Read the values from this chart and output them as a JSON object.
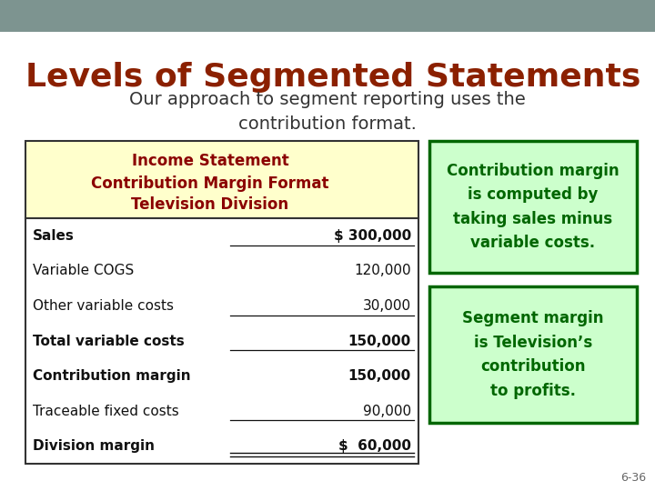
{
  "title": "Levels of Segmented Statements",
  "subtitle": "Our approach to segment reporting uses the\ncontribution format.",
  "title_color": "#8B2000",
  "subtitle_color": "#333333",
  "background_color": "#ffffff",
  "header_bar_color": "#7d9490",
  "slide_number": "6-36",
  "table_header_bg": "#ffffcc",
  "table_header_lines": [
    "Income Statement",
    "Contribution Margin Format",
    "Television Division"
  ],
  "table_header_colors": [
    "#8B0000",
    "#8B0000",
    "#8B0000"
  ],
  "table_rows": [
    [
      "Sales",
      "$ 300,000"
    ],
    [
      "Variable COGS",
      "120,000"
    ],
    [
      "Other variable costs",
      "30,000"
    ],
    [
      "Total variable costs",
      "150,000"
    ],
    [
      "Contribution margin",
      "150,000"
    ],
    [
      "Traceable fixed costs",
      "90,000"
    ],
    [
      "Division margin",
      "$  60,000"
    ]
  ],
  "table_row_bold": [
    true,
    false,
    false,
    true,
    true,
    false,
    true
  ],
  "underline_rows": [
    0,
    2,
    3,
    5,
    6
  ],
  "double_underline_row": 6,
  "box1_text": "Contribution margin\nis computed by\ntaking sales minus\nvariable costs.",
  "box2_text": "Segment margin\nis Television’s\ncontribution\nto profits.",
  "box_bg": "#ccffcc",
  "box_border": "#006600",
  "box_text_color": "#006600"
}
